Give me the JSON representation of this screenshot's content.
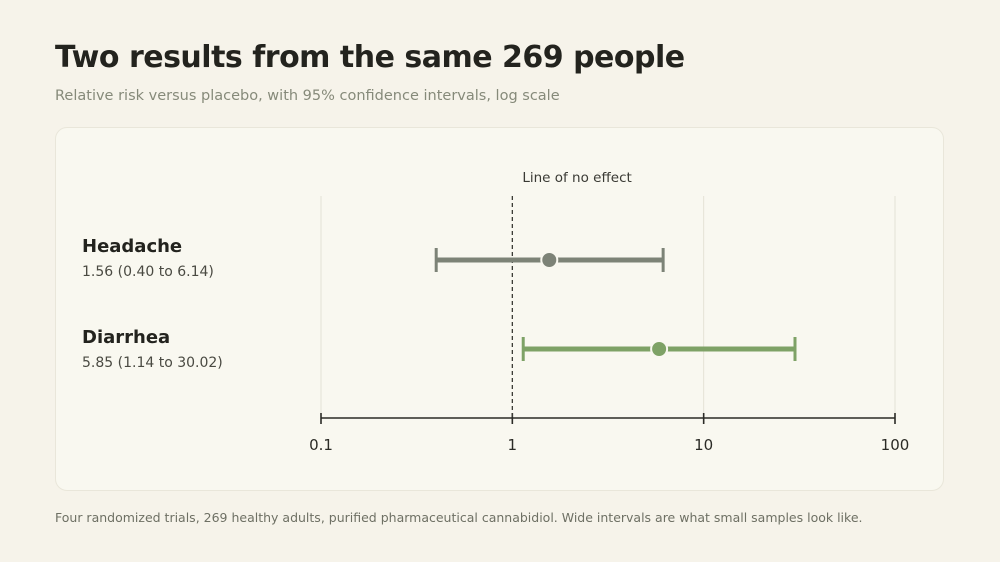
{
  "header": {
    "title": "Two results from the same 269 people",
    "subtitle": "Relative risk versus placebo, with 95% confidence intervals, log scale"
  },
  "footer": {
    "note": "Four randomized trials, 269 healthy adults, purified pharmaceutical cannabidiol. Wide intervals are what small samples look like."
  },
  "chart_data": {
    "type": "forest",
    "xscale": "log",
    "xlim": [
      0.1,
      100
    ],
    "xticks": [
      0.1,
      1,
      10,
      100
    ],
    "xtick_labels": [
      "0.1",
      "1",
      "10",
      "100"
    ],
    "grid": true,
    "reference_line": {
      "x": 1,
      "label": "Line of no effect",
      "style": "dashed"
    },
    "series": [
      {
        "name": "Headache",
        "value_label": "1.56 (0.40 to 6.14)",
        "estimate": 1.56,
        "ci_low": 0.4,
        "ci_high": 6.14,
        "color": "#7d8377"
      },
      {
        "name": "Diarrhea",
        "value_label": "5.85 (1.14 to 30.02)",
        "estimate": 5.85,
        "ci_low": 1.14,
        "ci_high": 30.02,
        "color": "#7ea266"
      }
    ]
  }
}
